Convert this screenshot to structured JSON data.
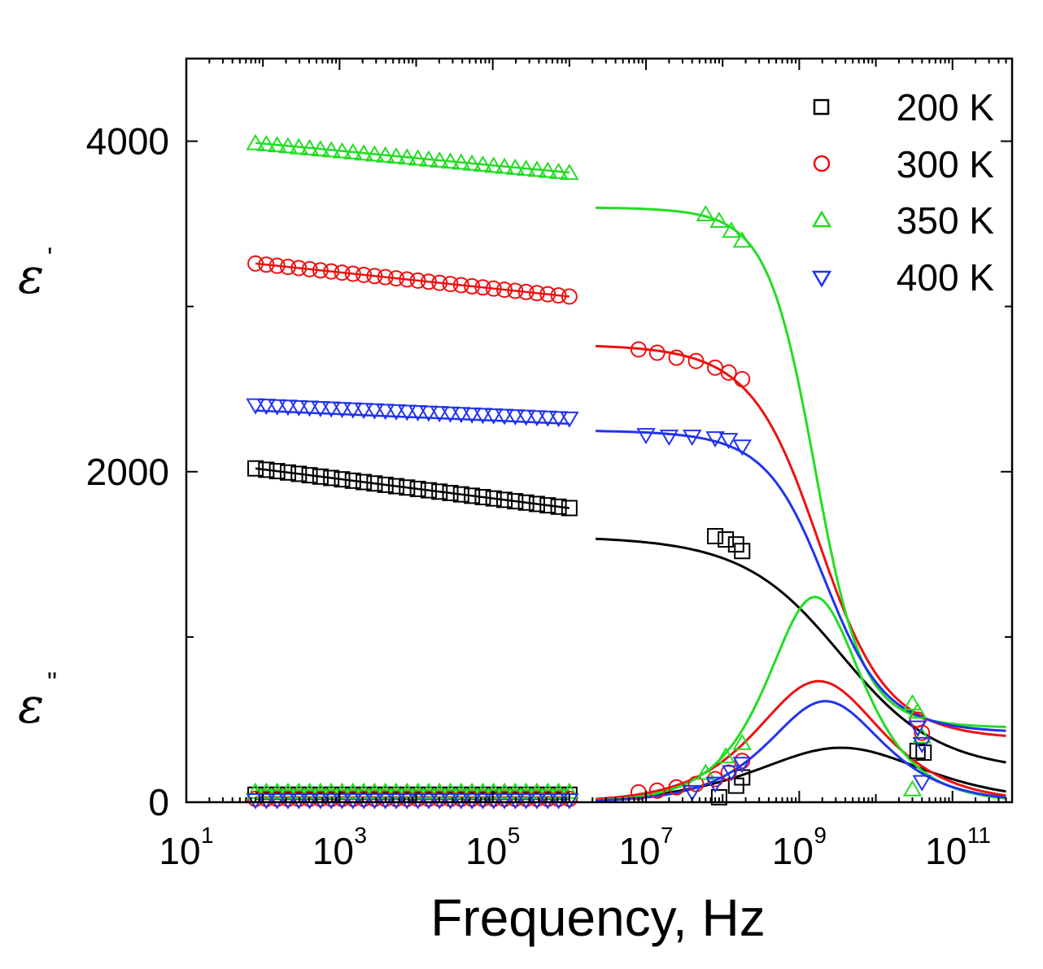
{
  "chart_data": {
    "type": "scatter",
    "xlabel": "Frequency, Hz",
    "ylabel_top": "ε",
    "ylabel_top_sup": "'",
    "ylabel_bottom": "ε",
    "ylabel_bottom_sup": "\"",
    "xscale": "log",
    "xlim": [
      10,
      600000000000
    ],
    "ylim": [
      0,
      4500
    ],
    "x_ticks": [
      {
        "base": "10",
        "exp": "1",
        "value": 10
      },
      {
        "base": "10",
        "exp": "3",
        "value": 1000
      },
      {
        "base": "10",
        "exp": "5",
        "value": 100000
      },
      {
        "base": "10",
        "exp": "7",
        "value": 10000000
      },
      {
        "base": "10",
        "exp": "9",
        "value": 1000000000
      },
      {
        "base": "10",
        "exp": "11",
        "value": 100000000000
      }
    ],
    "y_ticks": [
      {
        "label": "0",
        "value": 0
      },
      {
        "label": "2000",
        "value": 2000
      },
      {
        "label": "4000",
        "value": 4000
      }
    ],
    "legend_position": "top-right",
    "series": [
      {
        "name": "200 K",
        "color": "#000000",
        "marker": "square",
        "eps1_low": {
          "start": 2020,
          "end": 1780
        },
        "eps2_low": 55,
        "hf_points": [
          [
            80000000,
            1610
          ],
          [
            110000000,
            1590
          ],
          [
            150000000,
            1560
          ],
          [
            180000000,
            1520
          ]
        ],
        "hf_eps2_points": [
          [
            90000000,
            30
          ],
          [
            150000000,
            100
          ],
          [
            180000000,
            150
          ]
        ],
        "mw_points": [
          [
            35000000000,
            310
          ],
          [
            42000000000,
            300
          ]
        ],
        "fit": {
          "eps_s": 1610,
          "eps_inf": 180,
          "tau_f": 3500000000,
          "alpha": 0.55
        }
      },
      {
        "name": "300 K",
        "color": "#ee1111",
        "marker": "circle",
        "eps1_low": {
          "start": 3260,
          "end": 3060
        },
        "eps2_low": 30,
        "hf_points": [
          [
            8000000,
            2740
          ],
          [
            14000000,
            2720
          ],
          [
            25000000,
            2690
          ],
          [
            45000000,
            2670
          ],
          [
            80000000,
            2630
          ],
          [
            120000000,
            2600
          ],
          [
            180000000,
            2560
          ]
        ],
        "hf_eps2_points": [
          [
            8000000,
            60
          ],
          [
            14000000,
            70
          ],
          [
            25000000,
            90
          ],
          [
            45000000,
            110
          ],
          [
            80000000,
            140
          ],
          [
            120000000,
            180
          ],
          [
            180000000,
            250
          ]
        ],
        "mw_points": [
          [
            35000000000,
            500
          ],
          [
            40000000000,
            420
          ]
        ],
        "fit": {
          "eps_s": 2770,
          "eps_inf": 380,
          "tau_f": 1800000000,
          "alpha": 0.7
        }
      },
      {
        "name": "350 K",
        "color": "#22dd22",
        "marker": "triangle-up",
        "eps1_low": {
          "start": 3990,
          "end": 3810
        },
        "eps2_low": 75,
        "hf_points": [
          [
            60000000,
            3560
          ],
          [
            90000000,
            3520
          ],
          [
            130000000,
            3460
          ],
          [
            180000000,
            3400
          ]
        ],
        "hf_eps2_points": [
          [
            60000000,
            180
          ],
          [
            110000000,
            280
          ],
          [
            180000000,
            360
          ]
        ],
        "mw_points": [
          [
            30000000000,
            600
          ],
          [
            35000000000,
            550
          ],
          [
            40000000000,
            400
          ],
          [
            30000000000,
            80
          ]
        ],
        "fit": {
          "eps_s": 3600,
          "eps_inf": 450,
          "tau_f": 1600000000,
          "alpha": 0.85
        }
      },
      {
        "name": "400 K",
        "color": "#2233ee",
        "marker": "triangle-down",
        "eps1_low": {
          "start": 2370,
          "end": 2290
        },
        "eps2_low": 20,
        "hf_points": [
          [
            10000000,
            2220
          ],
          [
            20000000,
            2210
          ],
          [
            40000000,
            2210
          ],
          [
            80000000,
            2200
          ],
          [
            120000000,
            2190
          ],
          [
            180000000,
            2150
          ]
        ],
        "hf_eps2_points": [
          [
            40000000,
            60
          ],
          [
            80000000,
            110
          ],
          [
            130000000,
            180
          ],
          [
            180000000,
            230
          ]
        ],
        "mw_points": [
          [
            35000000000,
            450
          ],
          [
            40000000000,
            350
          ],
          [
            40000000000,
            120
          ]
        ],
        "fit": {
          "eps_s": 2250,
          "eps_inf": 420,
          "tau_f": 2200000000,
          "alpha": 0.75
        }
      }
    ]
  }
}
